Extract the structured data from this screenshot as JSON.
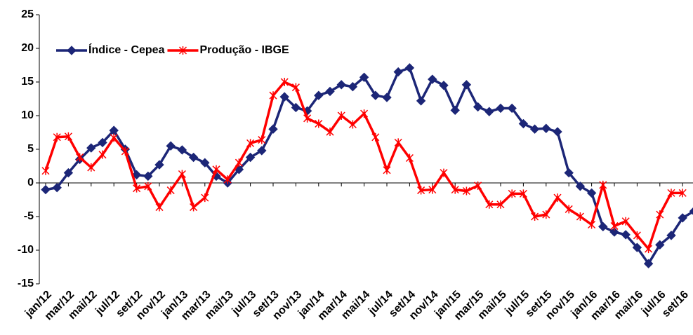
{
  "chart_data": {
    "type": "line",
    "categories": [
      "jan/12",
      null,
      "mar/12",
      null,
      "mai/12",
      null,
      "jul/12",
      null,
      "set/12",
      null,
      "nov/12",
      null,
      "jan/13",
      null,
      "mar/13",
      null,
      "mai/13",
      null,
      "jul/13",
      null,
      "set/13",
      null,
      "nov/13",
      null,
      "jan/14",
      null,
      "mar/14",
      null,
      "mai/14",
      null,
      "jul/14",
      null,
      "set/14",
      null,
      "nov/14",
      null,
      "jan/15",
      null,
      "mar/15",
      null,
      "mai/15",
      null,
      "jul/15",
      null,
      "set/15",
      null,
      "nov/15",
      null,
      "jan/16",
      null,
      "mar/16",
      null,
      "mai/16",
      null,
      "jul/16",
      null,
      "set/16",
      null
    ],
    "series": [
      {
        "name": "Índice - Cepea",
        "color": "#1c2677",
        "marker": "diamond",
        "values": [
          -1,
          -0.7,
          1.5,
          3.5,
          5.2,
          6,
          7.8,
          5,
          1.2,
          1,
          2.7,
          5.5,
          4.9,
          3.8,
          3,
          1,
          0,
          2,
          3.8,
          4.8,
          8,
          12.8,
          11.2,
          10.7,
          13,
          13.6,
          14.6,
          14.3,
          15.7,
          13,
          12.7,
          16.5,
          17.1,
          12.2,
          15.4,
          14.5,
          10.8,
          14.6,
          11.3,
          10.6,
          11.1,
          11.1,
          8.8,
          8,
          8.1,
          7.6,
          1.5,
          -0.5,
          -1.5,
          -6.5,
          -7.3,
          -7.7,
          -9.6,
          -12,
          -9.2,
          -7.8,
          -5.2,
          -4.2
        ]
      },
      {
        "name": "Produção - IBGE",
        "color": "#ff0000",
        "marker": "star",
        "values": [
          1.8,
          6.8,
          6.9,
          3.8,
          2.3,
          4.2,
          6.7,
          4.7,
          -0.8,
          -0.5,
          -3.6,
          -1.1,
          1.3,
          -3.6,
          -2.2,
          2,
          0.5,
          3,
          5.9,
          6.4,
          13,
          15,
          14.2,
          9.6,
          8.8,
          7.6,
          10,
          8.7,
          10.3,
          6.8,
          1.9,
          6,
          3.7,
          -1.1,
          -1,
          1.5,
          -1,
          -1.2,
          -0.4,
          -3.2,
          -3.2,
          -1.6,
          -1.6,
          -5,
          -4.7,
          -2.2,
          -3.9,
          -5,
          -6.2,
          -0.3,
          -6.4,
          -5.7,
          -7.8,
          -9.8,
          -4.7,
          -1.5,
          -1.5,
          null
        ]
      }
    ],
    "ylim": [
      -15,
      25
    ],
    "yticks": [
      -15,
      -10,
      -5,
      0,
      5,
      10,
      15,
      20,
      25
    ],
    "grid": false,
    "legend": "upper left"
  }
}
